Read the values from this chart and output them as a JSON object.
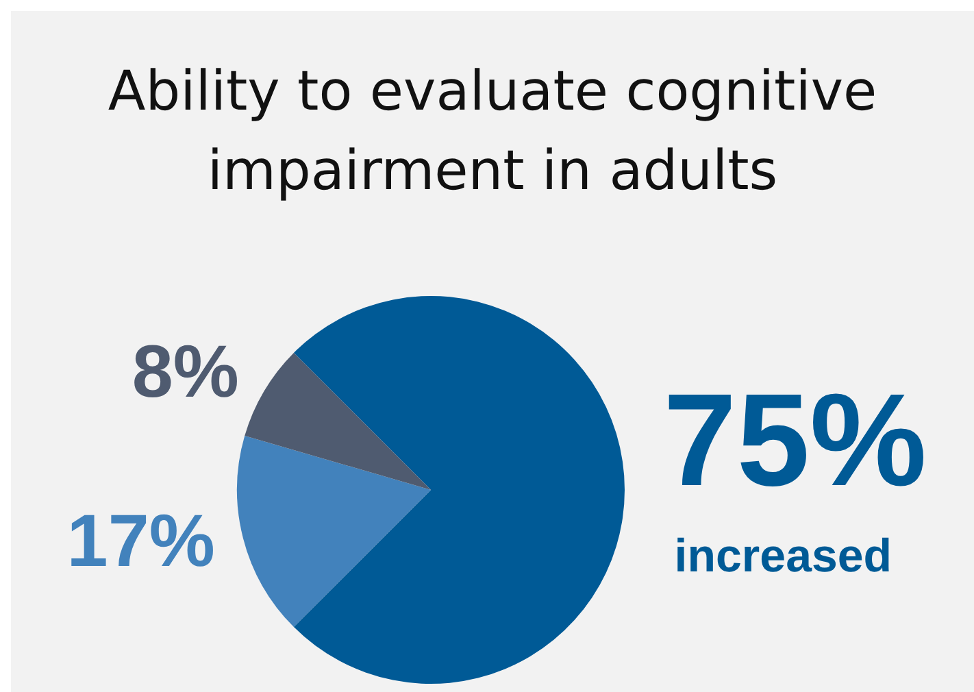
{
  "chart_data": {
    "type": "pie",
    "title": "Ability to evaluate cognitive impairment in adults",
    "categories": [
      null,
      null,
      null
    ],
    "values": [
      75,
      17,
      8
    ],
    "colors": [
      "#005a96",
      "#4282bc",
      "#4f5b70"
    ],
    "value_labels": [
      "75%",
      "17%",
      "8%"
    ],
    "annotations": [
      "increased"
    ],
    "legend": false
  }
}
